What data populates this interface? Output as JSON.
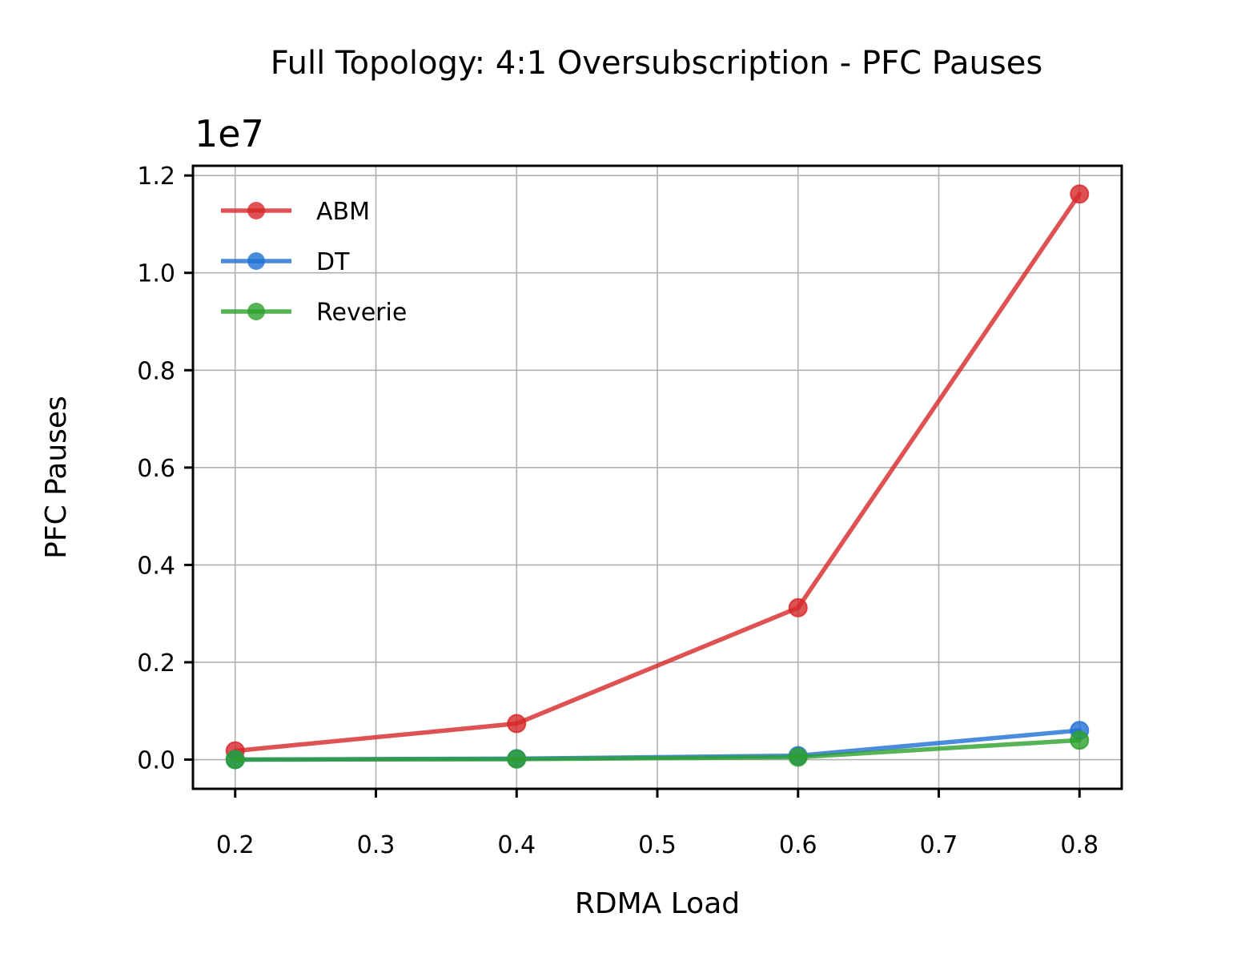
{
  "chart_data": {
    "type": "line",
    "title": "Full Topology: 4:1 Oversubscription - PFC Pauses",
    "xlabel": "RDMA Load",
    "ylabel": "PFC Pauses",
    "y_offset_label": "1e7",
    "y_scale_factor": 10000000,
    "x": [
      0.2,
      0.4,
      0.6,
      0.8
    ],
    "xlim": [
      0.17,
      0.83
    ],
    "ylim": [
      -600000,
      12200000
    ],
    "x_ticks": [
      "0.2",
      "0.3",
      "0.4",
      "0.5",
      "0.6",
      "0.7",
      "0.8"
    ],
    "y_ticks": [
      "0.0",
      "0.2",
      "0.4",
      "0.6",
      "0.8",
      "1.0",
      "1.2"
    ],
    "grid": true,
    "legend_position": "upper-left",
    "series": [
      {
        "name": "ABM",
        "color": "#d62728",
        "values": [
          180000,
          740000,
          3120000,
          11620000
        ]
      },
      {
        "name": "DT",
        "color": "#1f6fd6",
        "values": [
          0,
          20000,
          80000,
          600000
        ]
      },
      {
        "name": "Reverie",
        "color": "#2ca02c",
        "values": [
          0,
          10000,
          50000,
          400000
        ]
      }
    ]
  }
}
